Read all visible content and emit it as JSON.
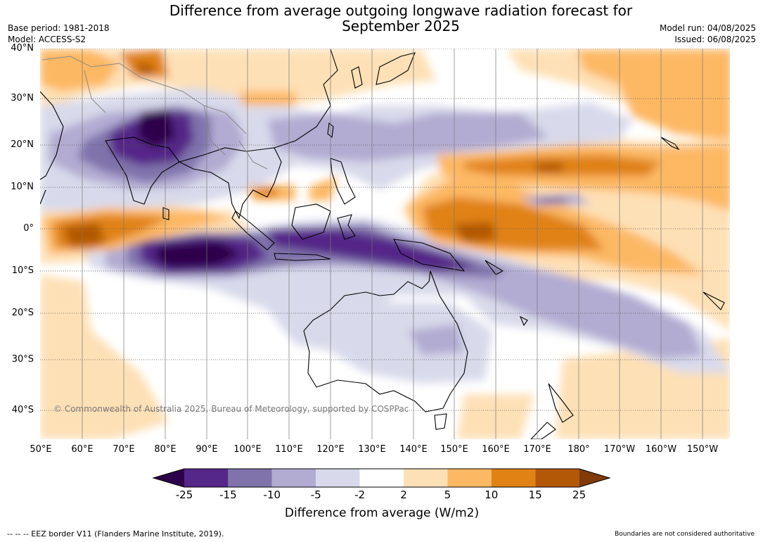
{
  "title": {
    "line1": "Difference from average outgoing longwave radiation forecast for",
    "line2": "September 2025"
  },
  "meta": {
    "base_period": "Base period: 1981-2018",
    "model": "Model: ACCESS-S2",
    "model_run": "Model run: 04/08/2025",
    "issued": "Issued: 06/08/2025"
  },
  "axes": {
    "lat": [
      "40°N",
      "30°N",
      "20°N",
      "10°N",
      "0°",
      "10°S",
      "20°S",
      "30°S",
      "40°S"
    ],
    "lon": [
      "50°E",
      "60°E",
      "70°E",
      "80°E",
      "90°E",
      "100°E",
      "110°E",
      "120°E",
      "130°E",
      "140°E",
      "150°E",
      "160°E",
      "170°E",
      "180°",
      "170°W",
      "160°W",
      "150°W"
    ]
  },
  "map": {
    "copyright": "© Commonwealth of Australia 2025, Bureau of Meteorology, supported by COSPPac",
    "legend_note": "--  --  -- EEZ border V11 (Flanders Marine Institute, 2019).",
    "boundaries_note": "Boundaries are not considered authoritative"
  },
  "colorbar": {
    "title": "Difference from average (W/m2)",
    "ticks": [
      "-25",
      "-15",
      "-10",
      "-5",
      "-2",
      "2",
      "5",
      "10",
      "15",
      "25"
    ],
    "colors": {
      "under": "#2d004b",
      "bins": [
        "#542788",
        "#8073ac",
        "#b2abd2",
        "#d8daeb",
        "#ffffff",
        "#fee0b6",
        "#fdb863",
        "#e08214",
        "#b35806"
      ],
      "over": "#7f3b08"
    }
  },
  "colors": {
    "land_outline": "#000000",
    "grid": "#555555",
    "border": "#888888"
  }
}
